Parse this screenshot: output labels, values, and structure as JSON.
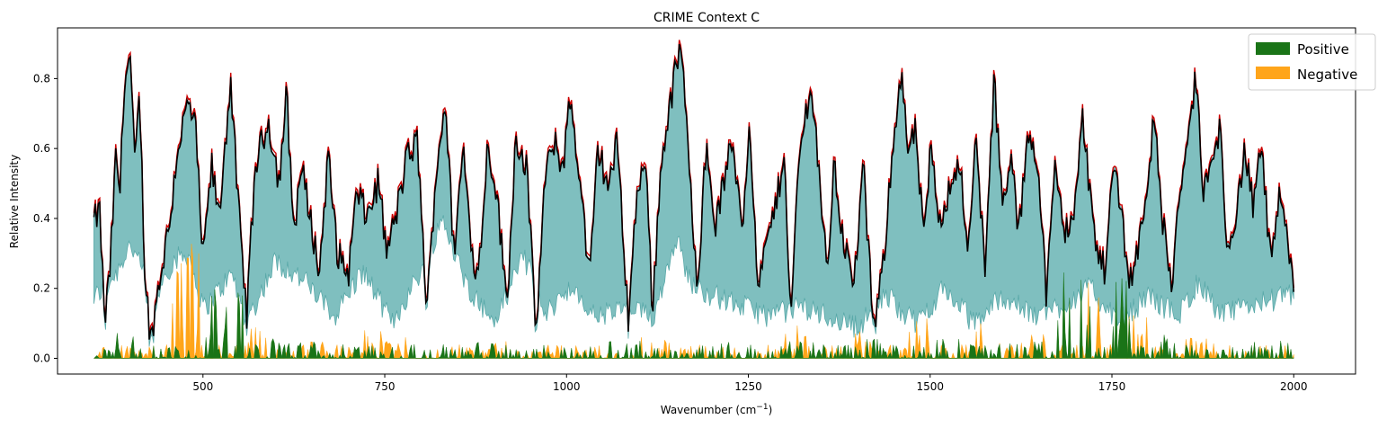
{
  "chart_data": {
    "type": "area",
    "title": "CRIME Context C",
    "xlabel": "Wavenumber (cm",
    "xlabel_sup": "−1",
    "xlabel_close": ")",
    "ylabel": "Relative Intensity",
    "xlim": [
      300,
      2085
    ],
    "ylim": [
      -0.045,
      0.945
    ],
    "x_ticks": [
      500,
      750,
      1000,
      1250,
      1500,
      1750,
      2000
    ],
    "x_tick_labels": [
      "500",
      "750",
      "1000",
      "1250",
      "1500",
      "1750",
      "2000"
    ],
    "y_ticks": [
      0.0,
      0.2,
      0.4,
      0.6,
      0.8
    ],
    "y_tick_labels": [
      "0.0",
      "0.2",
      "0.4",
      "0.6",
      "0.8"
    ],
    "legend": {
      "placement": "top-right",
      "entries": [
        {
          "label": "Positive",
          "color": "#1a7417"
        },
        {
          "label": "Negative",
          "color": "#ffa51a"
        }
      ]
    },
    "colors": {
      "band_fill": "#7fbfbf",
      "band_edge": "#5aa9a9",
      "mean_line": "#000000",
      "highlight_line": "#cc0000",
      "positive": "#1a7417",
      "negative": "#ffa51a"
    },
    "x_range": [
      350,
      2000
    ],
    "n_points": 825,
    "mean_keypoints": [
      [
        350,
        0.39
      ],
      [
        358,
        0.42
      ],
      [
        365,
        0.1
      ],
      [
        372,
        0.25
      ],
      [
        380,
        0.57
      ],
      [
        386,
        0.48
      ],
      [
        392,
        0.8
      ],
      [
        400,
        0.86
      ],
      [
        406,
        0.55
      ],
      [
        413,
        0.75
      ],
      [
        420,
        0.25
      ],
      [
        428,
        0.05
      ],
      [
        440,
        0.22
      ],
      [
        455,
        0.4
      ],
      [
        465,
        0.6
      ],
      [
        480,
        0.73
      ],
      [
        490,
        0.65
      ],
      [
        500,
        0.28
      ],
      [
        512,
        0.55
      ],
      [
        522,
        0.4
      ],
      [
        538,
        0.8
      ],
      [
        548,
        0.45
      ],
      [
        560,
        0.12
      ],
      [
        572,
        0.55
      ],
      [
        590,
        0.68
      ],
      [
        605,
        0.5
      ],
      [
        615,
        0.76
      ],
      [
        625,
        0.36
      ],
      [
        635,
        0.55
      ],
      [
        648,
        0.4
      ],
      [
        660,
        0.24
      ],
      [
        672,
        0.58
      ],
      [
        685,
        0.3
      ],
      [
        700,
        0.24
      ],
      [
        712,
        0.48
      ],
      [
        725,
        0.4
      ],
      [
        742,
        0.51
      ],
      [
        752,
        0.3
      ],
      [
        765,
        0.4
      ],
      [
        780,
        0.57
      ],
      [
        795,
        0.62
      ],
      [
        808,
        0.13
      ],
      [
        820,
        0.52
      ],
      [
        833,
        0.74
      ],
      [
        845,
        0.3
      ],
      [
        858,
        0.6
      ],
      [
        868,
        0.35
      ],
      [
        878,
        0.22
      ],
      [
        892,
        0.62
      ],
      [
        905,
        0.45
      ],
      [
        918,
        0.15
      ],
      [
        930,
        0.63
      ],
      [
        945,
        0.55
      ],
      [
        958,
        0.07
      ],
      [
        970,
        0.5
      ],
      [
        982,
        0.62
      ],
      [
        995,
        0.55
      ],
      [
        1005,
        0.74
      ],
      [
        1015,
        0.58
      ],
      [
        1032,
        0.22
      ],
      [
        1043,
        0.6
      ],
      [
        1058,
        0.49
      ],
      [
        1070,
        0.62
      ],
      [
        1085,
        0.11
      ],
      [
        1095,
        0.42
      ],
      [
        1108,
        0.6
      ],
      [
        1118,
        0.14
      ],
      [
        1130,
        0.55
      ],
      [
        1140,
        0.7
      ],
      [
        1150,
        0.82
      ],
      [
        1158,
        0.9
      ],
      [
        1168,
        0.55
      ],
      [
        1180,
        0.22
      ],
      [
        1192,
        0.6
      ],
      [
        1205,
        0.38
      ],
      [
        1218,
        0.52
      ],
      [
        1228,
        0.62
      ],
      [
        1242,
        0.38
      ],
      [
        1252,
        0.7
      ],
      [
        1262,
        0.2
      ],
      [
        1278,
        0.35
      ],
      [
        1290,
        0.46
      ],
      [
        1300,
        0.6
      ],
      [
        1308,
        0.1
      ],
      [
        1320,
        0.58
      ],
      [
        1335,
        0.78
      ],
      [
        1345,
        0.6
      ],
      [
        1358,
        0.24
      ],
      [
        1368,
        0.55
      ],
      [
        1380,
        0.35
      ],
      [
        1395,
        0.2
      ],
      [
        1408,
        0.55
      ],
      [
        1422,
        0.08
      ],
      [
        1435,
        0.25
      ],
      [
        1448,
        0.6
      ],
      [
        1460,
        0.82
      ],
      [
        1470,
        0.58
      ],
      [
        1480,
        0.65
      ],
      [
        1492,
        0.32
      ],
      [
        1500,
        0.6
      ],
      [
        1512,
        0.4
      ],
      [
        1525,
        0.47
      ],
      [
        1540,
        0.58
      ],
      [
        1552,
        0.28
      ],
      [
        1563,
        0.63
      ],
      [
        1576,
        0.25
      ],
      [
        1588,
        0.8
      ],
      [
        1600,
        0.42
      ],
      [
        1612,
        0.57
      ],
      [
        1622,
        0.35
      ],
      [
        1635,
        0.66
      ],
      [
        1647,
        0.58
      ],
      [
        1660,
        0.18
      ],
      [
        1672,
        0.55
      ],
      [
        1685,
        0.35
      ],
      [
        1700,
        0.45
      ],
      [
        1710,
        0.69
      ],
      [
        1720,
        0.47
      ],
      [
        1728,
        0.32
      ],
      [
        1740,
        0.25
      ],
      [
        1752,
        0.55
      ],
      [
        1762,
        0.45
      ],
      [
        1773,
        0.22
      ],
      [
        1785,
        0.3
      ],
      [
        1795,
        0.45
      ],
      [
        1808,
        0.68
      ],
      [
        1820,
        0.39
      ],
      [
        1833,
        0.2
      ],
      [
        1845,
        0.52
      ],
      [
        1855,
        0.6
      ],
      [
        1865,
        0.82
      ],
      [
        1875,
        0.48
      ],
      [
        1888,
        0.55
      ],
      [
        1898,
        0.66
      ],
      [
        1908,
        0.35
      ],
      [
        1920,
        0.38
      ],
      [
        1932,
        0.6
      ],
      [
        1945,
        0.42
      ],
      [
        1955,
        0.62
      ],
      [
        1968,
        0.28
      ],
      [
        1980,
        0.45
      ],
      [
        1990,
        0.35
      ],
      [
        2000,
        0.2
      ]
    ],
    "band_lower_keypoints": [
      [
        350,
        0.17
      ],
      [
        380,
        0.24
      ],
      [
        400,
        0.33
      ],
      [
        430,
        0.18
      ],
      [
        460,
        0.28
      ],
      [
        480,
        0.3
      ],
      [
        500,
        0.14
      ],
      [
        540,
        0.24
      ],
      [
        560,
        0.1
      ],
      [
        600,
        0.28
      ],
      [
        640,
        0.22
      ],
      [
        680,
        0.12
      ],
      [
        720,
        0.25
      ],
      [
        760,
        0.1
      ],
      [
        800,
        0.25
      ],
      [
        830,
        0.4
      ],
      [
        860,
        0.22
      ],
      [
        900,
        0.1
      ],
      [
        940,
        0.3
      ],
      [
        970,
        0.12
      ],
      [
        1000,
        0.2
      ],
      [
        1040,
        0.12
      ],
      [
        1080,
        0.14
      ],
      [
        1120,
        0.12
      ],
      [
        1150,
        0.35
      ],
      [
        1170,
        0.22
      ],
      [
        1200,
        0.18
      ],
      [
        1240,
        0.15
      ],
      [
        1280,
        0.12
      ],
      [
        1320,
        0.15
      ],
      [
        1360,
        0.12
      ],
      [
        1400,
        0.09
      ],
      [
        1440,
        0.18
      ],
      [
        1480,
        0.1
      ],
      [
        1520,
        0.2
      ],
      [
        1560,
        0.1
      ],
      [
        1600,
        0.18
      ],
      [
        1640,
        0.12
      ],
      [
        1680,
        0.15
      ],
      [
        1720,
        0.2
      ],
      [
        1760,
        0.1
      ],
      [
        1800,
        0.18
      ],
      [
        1840,
        0.12
      ],
      [
        1870,
        0.22
      ],
      [
        1900,
        0.12
      ],
      [
        1950,
        0.16
      ],
      [
        2000,
        0.18
      ]
    ],
    "positive_regions": [
      [
        350,
        380,
        0.04
      ],
      [
        380,
        440,
        0.1
      ],
      [
        440,
        460,
        0.06
      ],
      [
        500,
        560,
        0.2
      ],
      [
        580,
        640,
        0.06
      ],
      [
        640,
        700,
        0.05
      ],
      [
        860,
        900,
        0.05
      ],
      [
        1050,
        1110,
        0.06
      ],
      [
        1200,
        1260,
        0.05
      ],
      [
        1300,
        1360,
        0.05
      ],
      [
        1400,
        1460,
        0.06
      ],
      [
        1500,
        1560,
        0.06
      ],
      [
        1600,
        1660,
        0.05
      ],
      [
        1670,
        1725,
        0.26
      ],
      [
        1740,
        1775,
        0.24
      ],
      [
        1800,
        1850,
        0.07
      ],
      [
        1900,
        2000,
        0.05
      ]
    ],
    "negative_regions": [
      [
        455,
        495,
        0.35
      ],
      [
        560,
        600,
        0.12
      ],
      [
        640,
        680,
        0.05
      ],
      [
        720,
        780,
        0.08
      ],
      [
        880,
        940,
        0.06
      ],
      [
        1100,
        1150,
        0.06
      ],
      [
        1300,
        1330,
        0.12
      ],
      [
        1370,
        1420,
        0.08
      ],
      [
        1460,
        1500,
        0.12
      ],
      [
        1560,
        1600,
        0.1
      ],
      [
        1620,
        1660,
        0.08
      ],
      [
        1715,
        1735,
        0.32
      ],
      [
        1770,
        1800,
        0.16
      ],
      [
        1850,
        1900,
        0.06
      ]
    ]
  }
}
